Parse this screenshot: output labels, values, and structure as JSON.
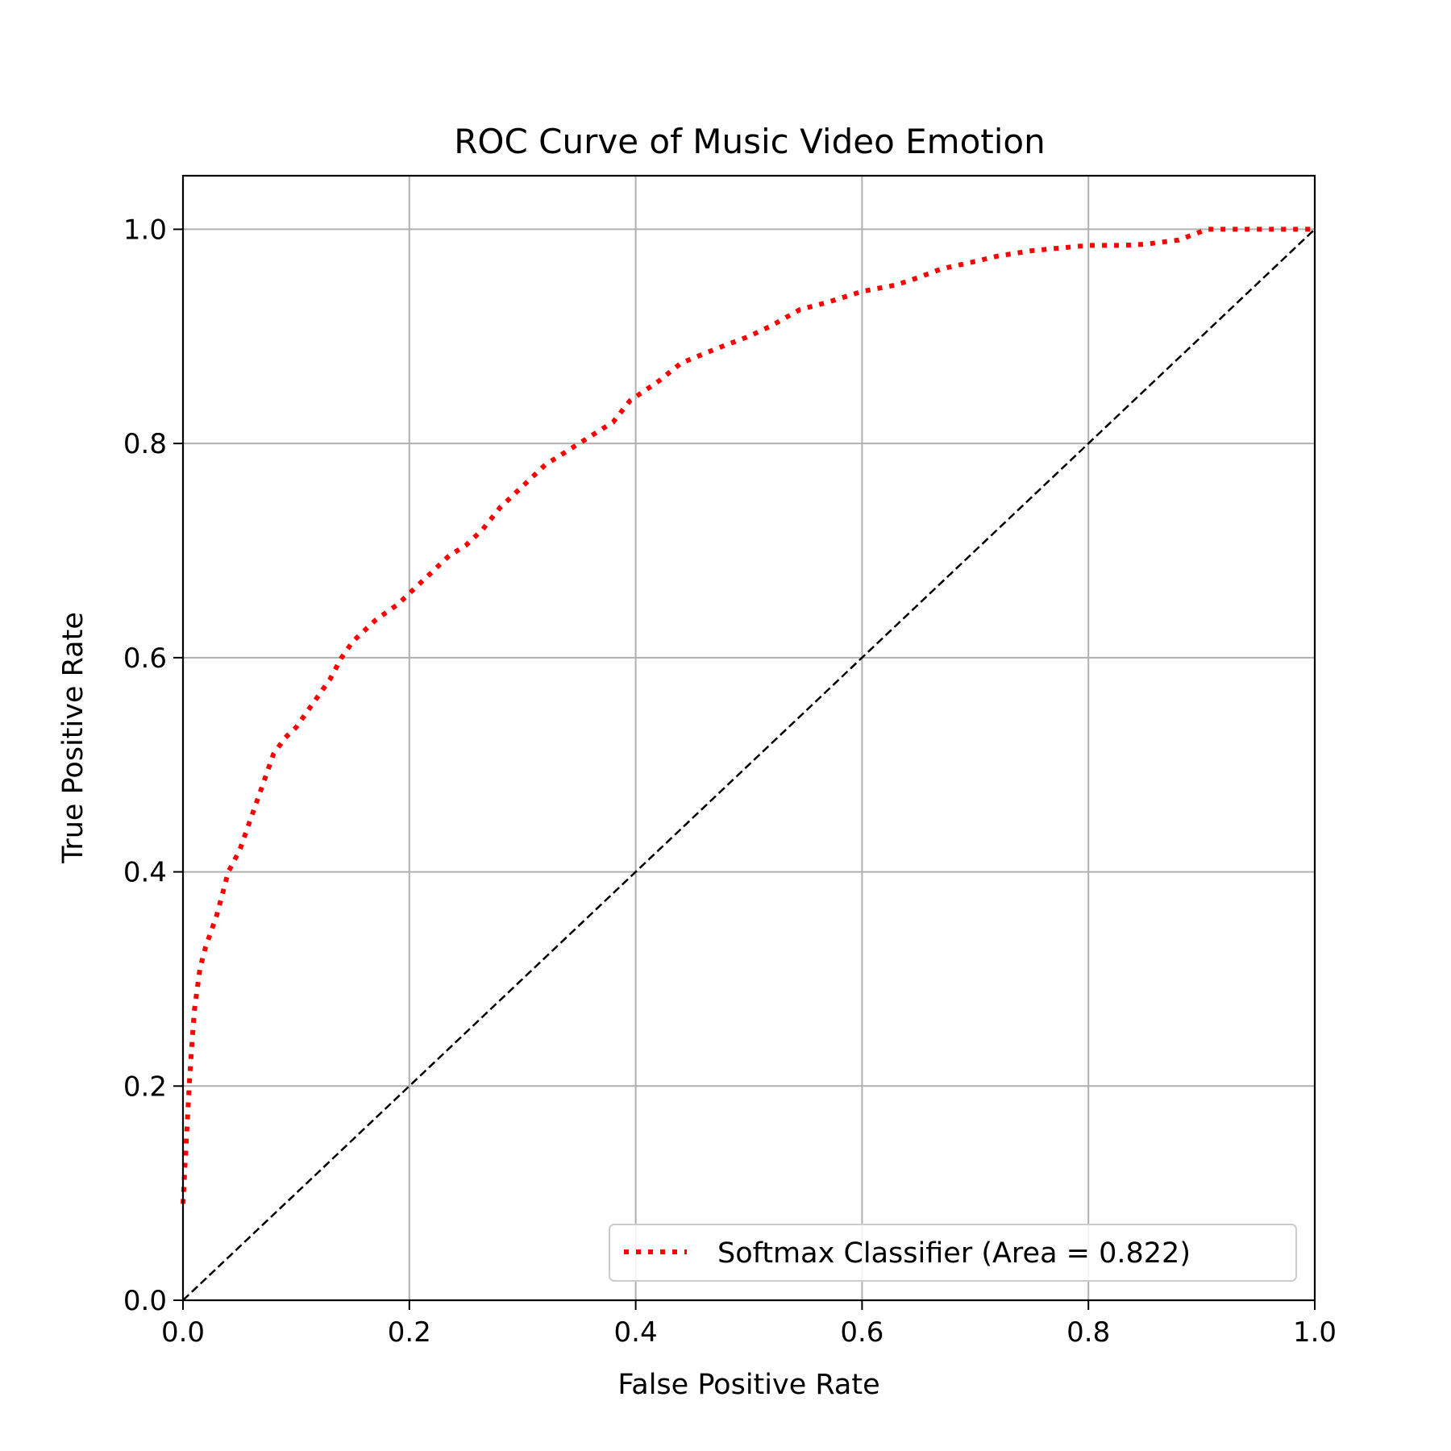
{
  "chart_data": {
    "type": "line",
    "title": "ROC Curve of Music Video Emotion",
    "xlabel": "False Positive Rate",
    "ylabel": "True Positive Rate",
    "xlim": [
      0.0,
      1.0
    ],
    "ylim": [
      0.0,
      1.05
    ],
    "x_ticks": [
      "0.0",
      "0.2",
      "0.4",
      "0.6",
      "0.8",
      "1.0"
    ],
    "y_ticks": [
      "0.0",
      "0.2",
      "0.4",
      "0.6",
      "0.8",
      "1.0"
    ],
    "grid": true,
    "legend_position": "lower-right",
    "series": [
      {
        "name": "Softmax Classifier (Area = 0.822)",
        "color": "#ff0000",
        "style": "dotted",
        "x": [
          0.0,
          0.003,
          0.006,
          0.01,
          0.015,
          0.02,
          0.03,
          0.04,
          0.05,
          0.06,
          0.07,
          0.08,
          0.09,
          0.1,
          0.11,
          0.12,
          0.13,
          0.14,
          0.15,
          0.17,
          0.19,
          0.2,
          0.22,
          0.235,
          0.25,
          0.265,
          0.28,
          0.3,
          0.32,
          0.35,
          0.38,
          0.395,
          0.42,
          0.44,
          0.47,
          0.5,
          0.52,
          0.545,
          0.57,
          0.6,
          0.63,
          0.65,
          0.67,
          0.7,
          0.72,
          0.75,
          0.78,
          0.8,
          0.83,
          0.85,
          0.88,
          0.905,
          0.95,
          1.0
        ],
        "y": [
          0.09,
          0.15,
          0.21,
          0.27,
          0.31,
          0.33,
          0.36,
          0.4,
          0.42,
          0.45,
          0.48,
          0.51,
          0.525,
          0.535,
          0.55,
          0.565,
          0.58,
          0.6,
          0.615,
          0.635,
          0.65,
          0.66,
          0.68,
          0.695,
          0.705,
          0.72,
          0.74,
          0.76,
          0.78,
          0.8,
          0.82,
          0.84,
          0.858,
          0.875,
          0.888,
          0.9,
          0.91,
          0.925,
          0.932,
          0.942,
          0.948,
          0.955,
          0.963,
          0.97,
          0.975,
          0.98,
          0.983,
          0.985,
          0.985,
          0.986,
          0.99,
          1.0,
          1.0,
          1.0
        ]
      },
      {
        "name": "",
        "color": "#000000",
        "style": "dashed",
        "x": [
          0.0,
          1.0
        ],
        "y": [
          0.0,
          1.0
        ]
      }
    ]
  }
}
